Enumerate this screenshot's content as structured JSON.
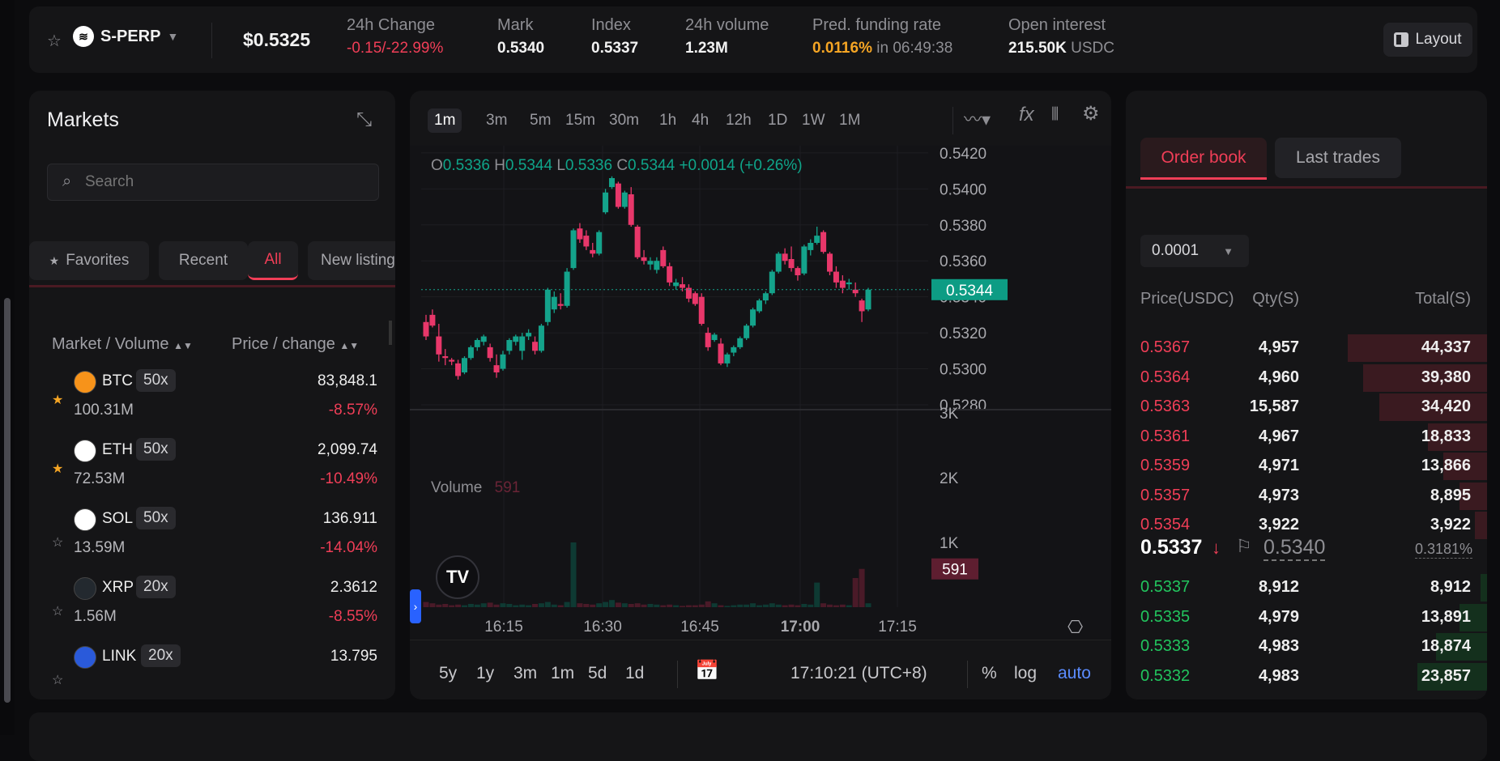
{
  "header": {
    "symbol": "S-PERP",
    "price": "$0.5325",
    "stats": [
      {
        "label": "24h Change",
        "value": "-0.15/-22.99%"
      },
      {
        "label": "Mark",
        "value": "0.5340"
      },
      {
        "label": "Index",
        "value": "0.5337"
      },
      {
        "label": "24h volume",
        "value": "1.23M"
      }
    ],
    "funding": {
      "label": "Pred. funding rate",
      "rate": "0.0116%",
      "suffix": "in 06:49:38"
    },
    "oi": {
      "label": "Open interest",
      "value": "215.50K",
      "unit": "USDC"
    },
    "layout_label": "Layout"
  },
  "markets": {
    "title": "Markets",
    "search_placeholder": "Search",
    "tabs": [
      "Favorites",
      "Recent",
      "All",
      "New listing"
    ],
    "col_market": "Market / Volume",
    "col_price": "Price / change",
    "rows": [
      {
        "sym": "BTC",
        "lev": "50x",
        "vol": "100.31M",
        "price": "83,848.1",
        "chg": "-8.57%",
        "fav": true,
        "color": "#f7931a",
        "icon": "bitcoin-icon"
      },
      {
        "sym": "ETH",
        "lev": "50x",
        "vol": "72.53M",
        "price": "2,099.74",
        "chg": "-10.49%",
        "fav": true,
        "color": "#ffffff",
        "icon": "ethereum-icon"
      },
      {
        "sym": "SOL",
        "lev": "50x",
        "vol": "13.59M",
        "price": "136.911",
        "chg": "-14.04%",
        "fav": false,
        "color": "#ffffff",
        "icon": "solana-icon"
      },
      {
        "sym": "XRP",
        "lev": "20x",
        "vol": "1.56M",
        "price": "2.3612",
        "chg": "-8.55%",
        "fav": false,
        "color": "#23292f",
        "icon": "xrp-icon"
      },
      {
        "sym": "LINK",
        "lev": "20x",
        "vol": "",
        "price": "13.795",
        "chg": "",
        "fav": false,
        "color": "#2a5ada",
        "icon": "chainlink-icon"
      }
    ]
  },
  "chart": {
    "intervals": [
      "1m",
      "3m",
      "5m",
      "15m",
      "30m",
      "1h",
      "4h",
      "12h",
      "1D",
      "1W",
      "1M"
    ],
    "ohlc": {
      "o": "0.5336",
      "h": "0.5344",
      "l": "0.5336",
      "c": "0.5344",
      "chg": "+0.0014 (+0.26%)"
    },
    "price_ticks": [
      "0.5420",
      "0.5400",
      "0.5380",
      "0.5360",
      "0.5340",
      "0.5320",
      "0.5300",
      "0.5280"
    ],
    "last_price": "0.5344",
    "volume_label": "Volume",
    "volume_value": "591",
    "volume_ticks": [
      "3K",
      "2K",
      "1K"
    ],
    "time_ticks": [
      "16:15",
      "16:30",
      "16:45",
      "17:00",
      "17:15"
    ],
    "ranges": [
      "5y",
      "1y",
      "3m",
      "1m",
      "5d",
      "1d"
    ],
    "clock": "17:10:21 (UTC+8)",
    "opts": {
      "pct": "%",
      "log": "log",
      "auto": "auto"
    }
  },
  "chart_data": {
    "type": "candlestick",
    "price_ylim": [
      0.528,
      0.5424
    ],
    "volume_ylim": [
      0,
      3000
    ],
    "candles": [
      [
        0.5326,
        0.533,
        0.5316,
        0.5318
      ],
      [
        0.533,
        0.5333,
        0.5323,
        0.5324
      ],
      [
        0.5318,
        0.5325,
        0.5304,
        0.5308
      ],
      [
        0.5307,
        0.5311,
        0.5302,
        0.5306
      ],
      [
        0.5305,
        0.5306,
        0.5302,
        0.5304
      ],
      [
        0.5303,
        0.5305,
        0.5294,
        0.5296
      ],
      [
        0.5298,
        0.5307,
        0.5297,
        0.5306
      ],
      [
        0.5306,
        0.5313,
        0.5305,
        0.5312
      ],
      [
        0.5312,
        0.5317,
        0.531,
        0.5316
      ],
      [
        0.5315,
        0.5319,
        0.5313,
        0.5318
      ],
      [
        0.5312,
        0.5314,
        0.5304,
        0.5306
      ],
      [
        0.5302,
        0.5308,
        0.5295,
        0.5298
      ],
      [
        0.53,
        0.531,
        0.5299,
        0.5308
      ],
      [
        0.531,
        0.5317,
        0.5308,
        0.5316
      ],
      [
        0.5315,
        0.5319,
        0.5313,
        0.5318
      ],
      [
        0.531,
        0.532,
        0.5305,
        0.5318
      ],
      [
        0.5318,
        0.5322,
        0.5316,
        0.532
      ],
      [
        0.5315,
        0.5318,
        0.5308,
        0.531
      ],
      [
        0.531,
        0.5325,
        0.5309,
        0.5324
      ],
      [
        0.5326,
        0.5345,
        0.5324,
        0.5344
      ],
      [
        0.5333,
        0.5343,
        0.5331,
        0.534
      ],
      [
        0.5336,
        0.5342,
        0.5333,
        0.5335
      ],
      [
        0.5335,
        0.5356,
        0.5334,
        0.5354
      ],
      [
        0.5356,
        0.5378,
        0.5355,
        0.5377
      ],
      [
        0.5378,
        0.5381,
        0.537,
        0.5372
      ],
      [
        0.5374,
        0.5377,
        0.5366,
        0.5368
      ],
      [
        0.5366,
        0.537,
        0.5362,
        0.5364
      ],
      [
        0.5364,
        0.5377,
        0.5363,
        0.5376
      ],
      [
        0.5387,
        0.54,
        0.5386,
        0.5398
      ],
      [
        0.5401,
        0.5407,
        0.54,
        0.5406
      ],
      [
        0.5403,
        0.5404,
        0.5389,
        0.539
      ],
      [
        0.539,
        0.5399,
        0.5389,
        0.5398
      ],
      [
        0.5397,
        0.5401,
        0.5379,
        0.538
      ],
      [
        0.5379,
        0.538,
        0.5361,
        0.5362
      ],
      [
        0.5362,
        0.5366,
        0.5358,
        0.536
      ],
      [
        0.5358,
        0.5362,
        0.5355,
        0.536
      ],
      [
        0.5355,
        0.5362,
        0.5353,
        0.536
      ],
      [
        0.5366,
        0.5368,
        0.5356,
        0.5357
      ],
      [
        0.5357,
        0.5359,
        0.5346,
        0.5348
      ],
      [
        0.5346,
        0.535,
        0.5344,
        0.5348
      ],
      [
        0.5347,
        0.5351,
        0.5343,
        0.5345
      ],
      [
        0.5345,
        0.5347,
        0.5337,
        0.5339
      ],
      [
        0.5342,
        0.5343,
        0.5335,
        0.5336
      ],
      [
        0.534,
        0.5342,
        0.5324,
        0.5325
      ],
      [
        0.532,
        0.5323,
        0.531,
        0.5312
      ],
      [
        0.5316,
        0.532,
        0.5315,
        0.5319
      ],
      [
        0.5314,
        0.5317,
        0.5302,
        0.5303
      ],
      [
        0.5303,
        0.5309,
        0.5301,
        0.5308
      ],
      [
        0.5309,
        0.5313,
        0.5307,
        0.5312
      ],
      [
        0.5312,
        0.5318,
        0.5311,
        0.5317
      ],
      [
        0.5317,
        0.5325,
        0.5316,
        0.5324
      ],
      [
        0.5324,
        0.5334,
        0.5323,
        0.5333
      ],
      [
        0.5332,
        0.5339,
        0.5331,
        0.5338
      ],
      [
        0.5338,
        0.5343,
        0.5336,
        0.5342
      ],
      [
        0.5342,
        0.5355,
        0.5341,
        0.5354
      ],
      [
        0.5354,
        0.5365,
        0.5353,
        0.5364
      ],
      [
        0.5364,
        0.5367,
        0.5358,
        0.536
      ],
      [
        0.5361,
        0.5368,
        0.5354,
        0.5356
      ],
      [
        0.5356,
        0.5357,
        0.5349,
        0.5352
      ],
      [
        0.5353,
        0.5369,
        0.5352,
        0.5368
      ],
      [
        0.5366,
        0.5372,
        0.5363,
        0.537
      ],
      [
        0.537,
        0.5379,
        0.5369,
        0.5374
      ],
      [
        0.5376,
        0.5377,
        0.5364,
        0.5365
      ],
      [
        0.5364,
        0.5365,
        0.5352,
        0.5354
      ],
      [
        0.5354,
        0.5357,
        0.5345,
        0.5348
      ],
      [
        0.5349,
        0.5352,
        0.5342,
        0.5345
      ],
      [
        0.5347,
        0.535,
        0.5344,
        0.5348
      ],
      [
        0.5344,
        0.5348,
        0.534,
        0.5342
      ],
      [
        0.5338,
        0.5339,
        0.5326,
        0.5332
      ],
      [
        0.5333,
        0.5345,
        0.5332,
        0.5344
      ]
    ],
    "volume": [
      80,
      60,
      40,
      50,
      30,
      40,
      30,
      50,
      40,
      60,
      70,
      40,
      60,
      50,
      30,
      40,
      30,
      50,
      60,
      80,
      40,
      30,
      80,
      1000,
      60,
      50,
      40,
      60,
      80,
      110,
      70,
      60,
      50,
      60,
      40,
      50,
      40,
      30,
      40,
      30,
      20,
      30,
      30,
      40,
      90,
      60,
      30,
      20,
      30,
      40,
      40,
      60,
      30,
      40,
      60,
      40,
      30,
      40,
      30,
      50,
      40,
      380,
      60,
      40,
      30,
      40,
      30,
      450,
      591,
      60
    ]
  },
  "orderbook": {
    "tabs": [
      "Order book",
      "Last trades"
    ],
    "tick": "0.0001",
    "cols": [
      "Price(USDC)",
      "Qty(S)",
      "Total(S)"
    ],
    "asks": [
      [
        "0.5367",
        "4,957",
        "44,337"
      ],
      [
        "0.5364",
        "4,960",
        "39,380"
      ],
      [
        "0.5363",
        "15,587",
        "34,420"
      ],
      [
        "0.5361",
        "4,967",
        "18,833"
      ],
      [
        "0.5359",
        "4,971",
        "13,866"
      ],
      [
        "0.5357",
        "4,973",
        "8,895"
      ],
      [
        "0.5354",
        "3,922",
        "3,922"
      ]
    ],
    "ask_depth": [
      1.0,
      0.888,
      0.776,
      0.425,
      0.313,
      0.2,
      0.088
    ],
    "mid": {
      "price": "0.5337",
      "mark": "0.5340",
      "spread": "0.3181%"
    },
    "bids": [
      [
        "0.5337",
        "8,912",
        "8,912"
      ],
      [
        "0.5335",
        "4,979",
        "13,891"
      ],
      [
        "0.5333",
        "4,983",
        "18,874"
      ],
      [
        "0.5332",
        "4,983",
        "23,857"
      ]
    ],
    "bid_depth": [
      0.049,
      0.198,
      0.365,
      0.499
    ]
  }
}
